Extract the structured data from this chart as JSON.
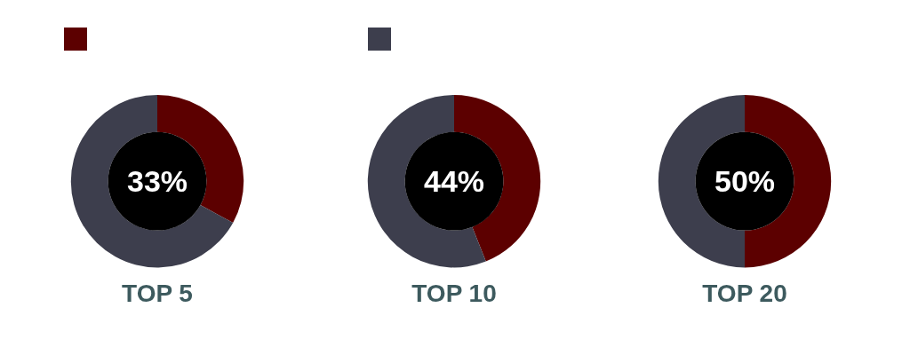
{
  "chart_data": [
    {
      "type": "donut",
      "title": "TOP 5",
      "categories": [
        null,
        null
      ],
      "values": [
        33,
        67
      ],
      "colors": [
        "#5c0000",
        "#3d3e4d"
      ],
      "value_labels": [
        "33%",
        null
      ]
    },
    {
      "type": "donut",
      "title": "TOP 10",
      "categories": [
        null,
        null
      ],
      "values": [
        44,
        56
      ],
      "colors": [
        "#5c0000",
        "#3d3e4d"
      ],
      "value_labels": [
        "44%",
        null
      ]
    },
    {
      "type": "donut",
      "title": "TOP 20",
      "categories": [
        null,
        null
      ],
      "values": [
        50,
        50
      ],
      "colors": [
        "#5c0000",
        "#3d3e4d"
      ],
      "value_labels": [
        "50%",
        null
      ]
    }
  ]
}
